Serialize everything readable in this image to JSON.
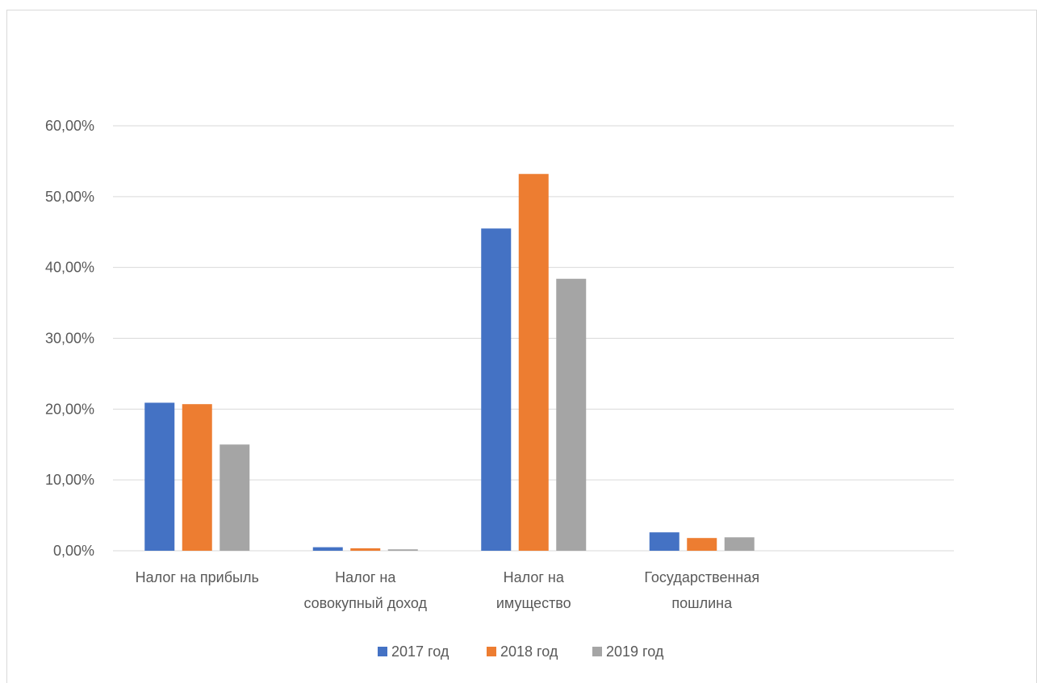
{
  "chart_data": {
    "type": "bar",
    "title": "",
    "xlabel": "",
    "ylabel": "",
    "categories": [
      [
        "Налог на прибыль"
      ],
      [
        "Налог на",
        "совокупный доход"
      ],
      [
        "Налог на",
        "имущество"
      ],
      [
        "Государственная",
        "пошлина"
      ]
    ],
    "series": [
      {
        "name": "2017 год",
        "color": "#4472C4",
        "values": [
          20.9,
          0.5,
          45.5,
          2.6
        ]
      },
      {
        "name": "2018 год",
        "color": "#ED7D31",
        "values": [
          20.7,
          0.35,
          53.2,
          1.8
        ]
      },
      {
        "name": "2019 год",
        "color": "#A5A5A5",
        "values": [
          15.0,
          0.2,
          38.4,
          1.9
        ]
      }
    ],
    "ylim": [
      0,
      60
    ],
    "yticks": [
      0,
      10,
      20,
      30,
      40,
      50,
      60
    ],
    "ytick_labels": [
      "0,00%",
      "10,00%",
      "20,00%",
      "30,00%",
      "40,00%",
      "50,00%",
      "60,00%"
    ],
    "grid": true,
    "legend_position": "bottom"
  }
}
